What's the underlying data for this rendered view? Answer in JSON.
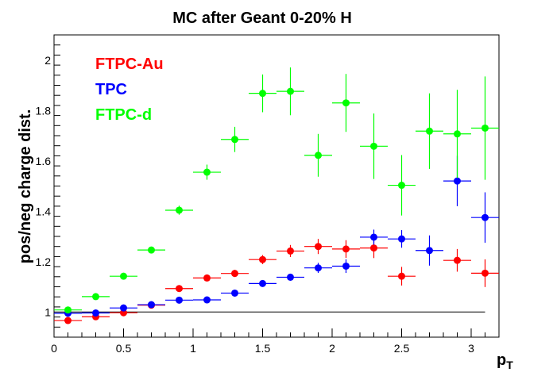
{
  "chart_data": {
    "type": "scatter",
    "title": "MC after Geant 0-20% H",
    "xlabel": "p",
    "xlabel_subscript": "T",
    "ylabel": "pos/neg charge dist.",
    "xlim": [
      0,
      3.2
    ],
    "ylim": [
      0.9,
      2.1
    ],
    "xticks": [
      0,
      0.5,
      1,
      1.5,
      2,
      2.5,
      3
    ],
    "xtick_labels": [
      "0",
      "0.5",
      "1",
      "1.5",
      "2",
      "2.5",
      "3"
    ],
    "yticks": [
      1,
      1.2,
      1.4,
      1.6,
      1.8,
      2
    ],
    "ytick_labels": [
      "1",
      "1.2",
      "1.4",
      "1.6",
      "1.8",
      "2"
    ],
    "reference_line": {
      "y": 1.0,
      "x_from": 0,
      "x_to": 3.1
    },
    "x_error_halfwidth": 0.1,
    "grid": false,
    "legend_position": "top-left",
    "series": [
      {
        "name": "FTPC-Au",
        "color": "#ff0000",
        "points": [
          {
            "x": 0.1,
            "y": 0.966,
            "yerr": 0.012
          },
          {
            "x": 0.3,
            "y": 0.981,
            "yerr": 0.01
          },
          {
            "x": 0.5,
            "y": 0.997,
            "yerr": 0.01
          },
          {
            "x": 0.7,
            "y": 1.027,
            "yerr": 0.009
          },
          {
            "x": 0.9,
            "y": 1.093,
            "yerr": 0.01
          },
          {
            "x": 1.1,
            "y": 1.135,
            "yerr": 0.012
          },
          {
            "x": 1.3,
            "y": 1.153,
            "yerr": 0.014
          },
          {
            "x": 1.5,
            "y": 1.208,
            "yerr": 0.018
          },
          {
            "x": 1.7,
            "y": 1.242,
            "yerr": 0.024
          },
          {
            "x": 1.9,
            "y": 1.26,
            "yerr": 0.03
          },
          {
            "x": 2.1,
            "y": 1.25,
            "yerr": 0.035
          },
          {
            "x": 2.3,
            "y": 1.254,
            "yerr": 0.04
          },
          {
            "x": 2.5,
            "y": 1.142,
            "yerr": 0.037
          },
          {
            "x": 2.9,
            "y": 1.205,
            "yerr": 0.045
          },
          {
            "x": 3.1,
            "y": 1.154,
            "yerr": 0.055
          }
        ]
      },
      {
        "name": "TPC",
        "color": "#0000ff",
        "points": [
          {
            "x": 0.1,
            "y": 0.995,
            "yerr": 0.006
          },
          {
            "x": 0.3,
            "y": 0.996,
            "yerr": 0.006
          },
          {
            "x": 0.5,
            "y": 1.016,
            "yerr": 0.006
          },
          {
            "x": 0.7,
            "y": 1.029,
            "yerr": 0.006
          },
          {
            "x": 0.9,
            "y": 1.047,
            "yerr": 0.006
          },
          {
            "x": 1.1,
            "y": 1.048,
            "yerr": 0.007
          },
          {
            "x": 1.3,
            "y": 1.075,
            "yerr": 0.008
          },
          {
            "x": 1.5,
            "y": 1.113,
            "yerr": 0.01
          },
          {
            "x": 1.7,
            "y": 1.138,
            "yerr": 0.014
          },
          {
            "x": 1.9,
            "y": 1.175,
            "yerr": 0.02
          },
          {
            "x": 2.1,
            "y": 1.182,
            "yerr": 0.027
          },
          {
            "x": 2.3,
            "y": 1.297,
            "yerr": 0.03
          },
          {
            "x": 2.5,
            "y": 1.29,
            "yerr": 0.035
          },
          {
            "x": 2.7,
            "y": 1.244,
            "yerr": 0.06
          },
          {
            "x": 2.9,
            "y": 1.52,
            "yerr": 0.1
          },
          {
            "x": 3.1,
            "y": 1.375,
            "yerr": 0.1
          }
        ]
      },
      {
        "name": "FTPC-d",
        "color": "#00ff00",
        "points": [
          {
            "x": 0.1,
            "y": 1.008,
            "yerr": 0.008
          },
          {
            "x": 0.3,
            "y": 1.061,
            "yerr": 0.01
          },
          {
            "x": 0.5,
            "y": 1.142,
            "yerr": 0.008
          },
          {
            "x": 0.7,
            "y": 1.246,
            "yerr": 0.012
          },
          {
            "x": 0.9,
            "y": 1.404,
            "yerr": 0.018
          },
          {
            "x": 1.1,
            "y": 1.555,
            "yerr": 0.03
          },
          {
            "x": 1.3,
            "y": 1.685,
            "yerr": 0.05
          },
          {
            "x": 1.5,
            "y": 1.868,
            "yerr": 0.075
          },
          {
            "x": 1.7,
            "y": 1.876,
            "yerr": 0.095
          },
          {
            "x": 1.9,
            "y": 1.622,
            "yerr": 0.085
          },
          {
            "x": 2.1,
            "y": 1.83,
            "yerr": 0.115
          },
          {
            "x": 2.3,
            "y": 1.658,
            "yerr": 0.13
          },
          {
            "x": 2.5,
            "y": 1.503,
            "yerr": 0.12
          },
          {
            "x": 2.7,
            "y": 1.718,
            "yerr": 0.15
          },
          {
            "x": 2.9,
            "y": 1.707,
            "yerr": 0.175
          },
          {
            "x": 3.1,
            "y": 1.73,
            "yerr": 0.205
          }
        ]
      }
    ]
  }
}
